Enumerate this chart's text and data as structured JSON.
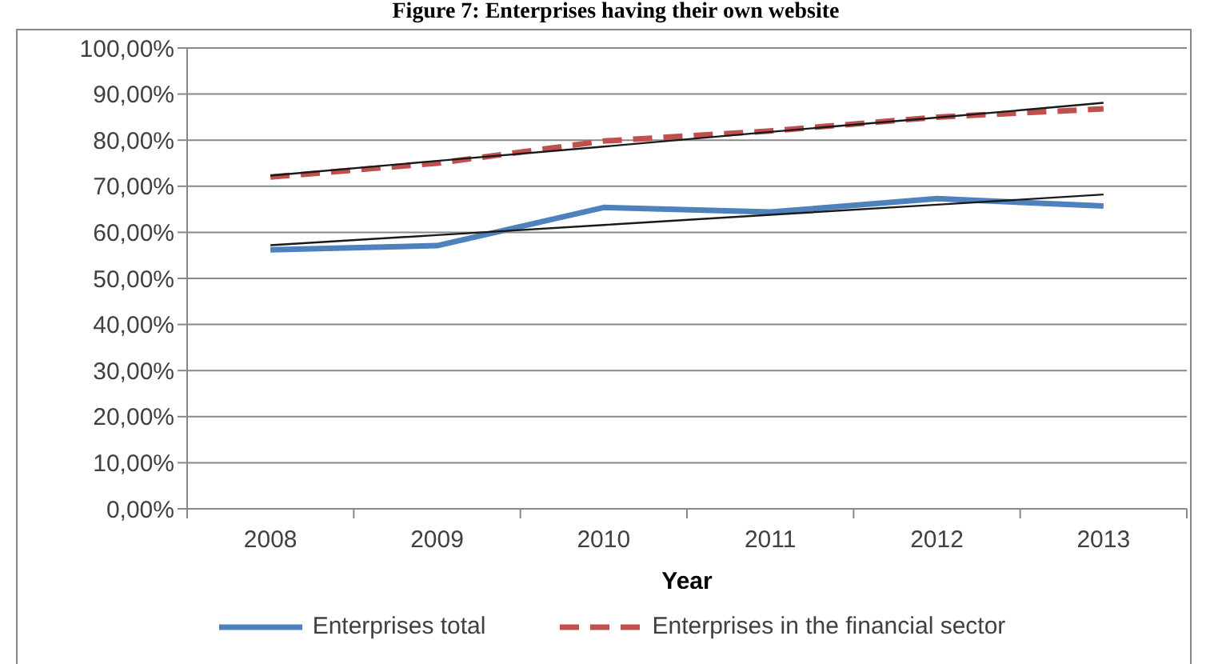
{
  "chart_data": {
    "type": "line",
    "title": "Figure 7: Enterprises having their own website",
    "xlabel": "Year",
    "categories": [
      "2008",
      "2009",
      "2010",
      "2011",
      "2012",
      "2013"
    ],
    "series": [
      {
        "name": "Enterprises total",
        "color": "#4f81bd",
        "line_style": "solid",
        "values": [
          56.2,
          57.1,
          65.4,
          64.4,
          67.3,
          65.7
        ]
      },
      {
        "name": "Enterprises in the financial sector",
        "color": "#c0504d",
        "line_style": "dashed",
        "values": [
          72.0,
          75.0,
          79.8,
          82.0,
          85.0,
          86.8
        ]
      },
      {
        "type": "line",
        "color": "#1a1a1a",
        "line_style": "solid",
        "values": [
          57.2,
          59.4,
          61.6,
          63.8,
          66.0,
          68.2
        ]
      },
      {
        "type": "line",
        "color": "#1a1a1a",
        "line_style": "solid",
        "values": [
          72.3,
          75.5,
          78.6,
          81.8,
          84.9,
          88.1
        ]
      }
    ],
    "ylim": [
      0,
      100
    ],
    "yticks": [
      {
        "value": 0,
        "label": "0,00%"
      },
      {
        "value": 10,
        "label": "10,00%"
      },
      {
        "value": 20,
        "label": "20,00%"
      },
      {
        "value": 30,
        "label": "30,00%"
      },
      {
        "value": 40,
        "label": "40,00%"
      },
      {
        "value": 50,
        "label": "50,00%"
      },
      {
        "value": 60,
        "label": "60,00%"
      },
      {
        "value": 70,
        "label": "70,00%"
      },
      {
        "value": 80,
        "label": "80,00%"
      },
      {
        "value": 90,
        "label": "90,00%"
      },
      {
        "value": 100,
        "label": "100,00%"
      }
    ],
    "grid": "y",
    "legend": "bottom",
    "marker": "none"
  }
}
